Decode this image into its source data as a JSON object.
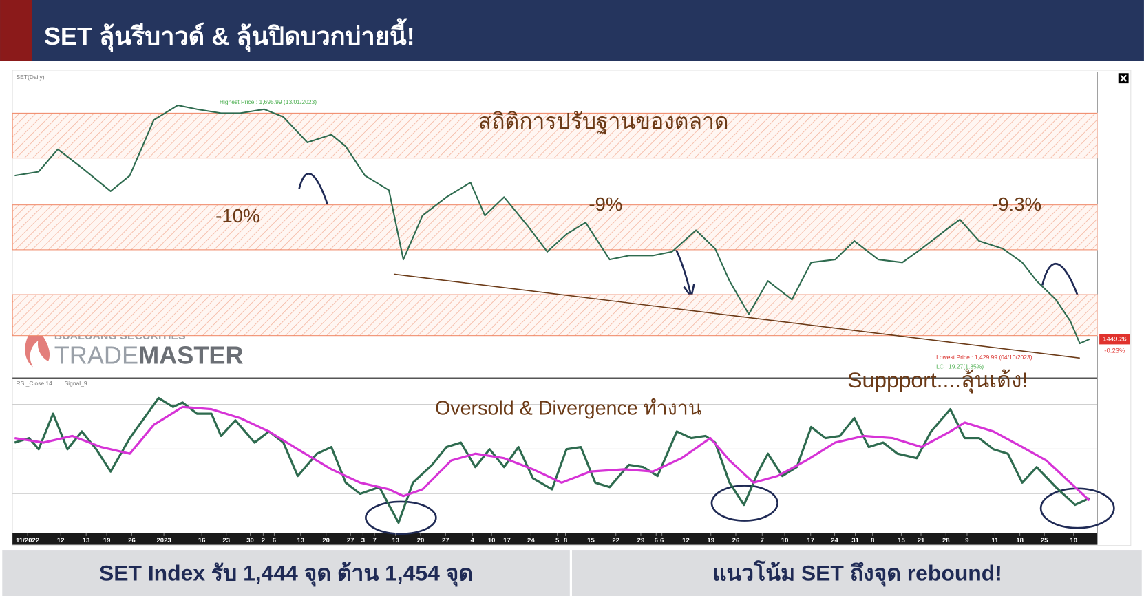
{
  "header": {
    "title": "SET ลุ้นรีบาวด์ & ลุ้นปิดบวกบ่ายนี้!"
  },
  "logo": {
    "company": "BUALUANG SECURITIES",
    "brand_first": "TRADE",
    "brand_second": "MASTER"
  },
  "footer": {
    "left": "SET Index รับ 1,444 จุด ต้าน 1,454 จุด",
    "right": "แนวโน้ม SET ถึงจุด rebound!"
  },
  "chart_data": [
    {
      "type": "line",
      "title": "SET(Daily)",
      "xlim": [
        0,
        225
      ],
      "ylim": [
        1411,
        1722
      ],
      "bands": [
        [
          1635,
          1681
        ],
        [
          1541,
          1587
        ],
        [
          1453,
          1495
        ]
      ],
      "band_color": "#f08a6a",
      "trend_line": {
        "x": [
          79,
          222
        ],
        "values": [
          1516,
          1430
        ],
        "color": "#6b3a17"
      },
      "series": [
        {
          "color": "#2e6b4f",
          "x": [
            0,
            5,
            9,
            14,
            20,
            24,
            29,
            34,
            38,
            43,
            47,
            52,
            56,
            61,
            66,
            69,
            73,
            78,
            81,
            85,
            90,
            95,
            98,
            102,
            107,
            111,
            115,
            119,
            124,
            128,
            133,
            137,
            142,
            146,
            149,
            153,
            157,
            162,
            166,
            171,
            175,
            180,
            185,
            189,
            194,
            197,
            201,
            206,
            210,
            213,
            217,
            220,
            222,
            224
          ],
          "values": [
            1617,
            1621,
            1644,
            1625,
            1601,
            1617,
            1674,
            1689,
            1685,
            1681,
            1681,
            1685,
            1677,
            1651,
            1659,
            1647,
            1617,
            1602,
            1531,
            1576,
            1595,
            1610,
            1576,
            1595,
            1565,
            1539,
            1557,
            1569,
            1531,
            1535,
            1535,
            1539,
            1561,
            1542,
            1509,
            1475,
            1509,
            1490,
            1528,
            1531,
            1550,
            1531,
            1528,
            1542,
            1561,
            1572,
            1550,
            1542,
            1528,
            1509,
            1490,
            1468,
            1445,
            1449.26
          ]
        }
      ],
      "highest_label": "Highest Price : 1,695.99 (13/01/2023)",
      "lowest_label": "Lowest Price : 1,429.99 (04/10/2023)",
      "lc_label": "LC : 19.27(1.35%)",
      "last_price": 1449.26,
      "last_change": "-0.23%",
      "annotations": [
        "สถิติการปรับฐานของตลาด",
        "-10%",
        "-9%",
        "-9.3%",
        "Suppport....ลุ้นเด้ง!"
      ]
    },
    {
      "type": "line",
      "xlim": [
        0,
        225
      ],
      "ylim": [
        12,
        81
      ],
      "series": [
        {
          "name": "RSI_Close,14",
          "color": "#2e6b4f",
          "x": [
            0,
            3,
            5,
            8,
            11,
            14,
            17,
            20,
            24,
            27,
            30,
            33,
            35,
            38,
            41,
            43,
            46,
            50,
            53,
            56,
            59,
            63,
            66,
            69,
            72,
            76,
            80,
            83,
            87,
            90,
            93,
            96,
            99,
            102,
            105,
            108,
            112,
            115,
            118,
            121,
            124,
            128,
            131,
            134,
            138,
            141,
            144,
            146,
            149,
            152,
            155,
            157,
            160,
            163,
            166,
            169,
            172,
            175,
            178,
            181,
            184,
            188,
            191,
            193,
            195,
            198,
            201,
            204,
            207,
            210,
            213,
            217,
            221,
            224
          ],
          "values": [
            53,
            55,
            50,
            66,
            50,
            58,
            50,
            40,
            55,
            64,
            73,
            69,
            71,
            66,
            66,
            56,
            63,
            53,
            58,
            53,
            38,
            48,
            51,
            35,
            30,
            33,
            17,
            35,
            43,
            51,
            53,
            42,
            50,
            42,
            51,
            37,
            32,
            50,
            51,
            35,
            33,
            43,
            42,
            38,
            58,
            55,
            56,
            53,
            35,
            25,
            40,
            48,
            38,
            42,
            60,
            55,
            56,
            64,
            51,
            53,
            48,
            46,
            58,
            63,
            68,
            55,
            55,
            50,
            48,
            35,
            42,
            33,
            25,
            28
          ]
        },
        {
          "name": "Signal_9",
          "color": "#d633d6",
          "x": [
            0,
            6,
            12,
            18,
            24,
            29,
            35,
            41,
            47,
            53,
            59,
            66,
            72,
            78,
            81,
            85,
            91,
            96,
            102,
            108,
            114,
            120,
            127,
            133,
            139,
            145,
            149,
            154,
            159,
            165,
            171,
            177,
            183,
            189,
            195,
            198,
            204,
            210,
            215,
            220,
            224
          ],
          "values": [
            55,
            53,
            56,
            51,
            48,
            61,
            69,
            68,
            64,
            58,
            50,
            41,
            35,
            32,
            29,
            32,
            45,
            48,
            46,
            41,
            35,
            40,
            41,
            40,
            46,
            55,
            45,
            35,
            38,
            45,
            53,
            56,
            55,
            51,
            58,
            62,
            58,
            51,
            45,
            35,
            27
          ]
        }
      ],
      "xticks": [
        {
          "value": 2.7,
          "label": "11/2022"
        },
        {
          "value": 9.6,
          "label": "12"
        },
        {
          "value": 14.9,
          "label": "13"
        },
        {
          "value": 19.2,
          "label": "19"
        },
        {
          "value": 24.4,
          "label": "26"
        },
        {
          "value": 31.1,
          "label": "2023"
        },
        {
          "value": 39,
          "label": "16"
        },
        {
          "value": 44.1,
          "label": "23"
        },
        {
          "value": 49.1,
          "label": "30"
        },
        {
          "value": 51.8,
          "label": "2"
        },
        {
          "value": 54.1,
          "label": "6"
        },
        {
          "value": 59.6,
          "label": "13"
        },
        {
          "value": 64.9,
          "label": "20"
        },
        {
          "value": 70,
          "label": "27"
        },
        {
          "value": 72.6,
          "label": "3"
        },
        {
          "value": 75,
          "label": "7"
        },
        {
          "value": 79.4,
          "label": "13"
        },
        {
          "value": 84.6,
          "label": "20"
        },
        {
          "value": 89.8,
          "label": "27"
        },
        {
          "value": 95.4,
          "label": "4"
        },
        {
          "value": 99.4,
          "label": "10"
        },
        {
          "value": 102.6,
          "label": "17"
        },
        {
          "value": 107.6,
          "label": "24"
        },
        {
          "value": 113.1,
          "label": "5"
        },
        {
          "value": 114.8,
          "label": "8"
        },
        {
          "value": 120.1,
          "label": "15"
        },
        {
          "value": 125.3,
          "label": "22"
        },
        {
          "value": 130.5,
          "label": "29"
        },
        {
          "value": 133.7,
          "label": "6"
        },
        {
          "value": 134.9,
          "label": "6"
        },
        {
          "value": 139.9,
          "label": "12"
        },
        {
          "value": 145.1,
          "label": "19"
        },
        {
          "value": 150.3,
          "label": "26"
        },
        {
          "value": 155.8,
          "label": "7"
        },
        {
          "value": 160.5,
          "label": "10"
        },
        {
          "value": 165.9,
          "label": "17"
        },
        {
          "value": 170.9,
          "label": "24"
        },
        {
          "value": 175.2,
          "label": "31"
        },
        {
          "value": 178.8,
          "label": "8"
        },
        {
          "value": 184.8,
          "label": "15"
        },
        {
          "value": 188.9,
          "label": "21"
        },
        {
          "value": 194.1,
          "label": "28"
        },
        {
          "value": 198.5,
          "label": "9"
        },
        {
          "value": 204.3,
          "label": "11"
        },
        {
          "value": 209.5,
          "label": "18"
        },
        {
          "value": 214.6,
          "label": "25"
        },
        {
          "value": 220.7,
          "label": "10"
        }
      ],
      "annotations": [
        "Oversold  & Divergence ทำงาน"
      ]
    }
  ]
}
